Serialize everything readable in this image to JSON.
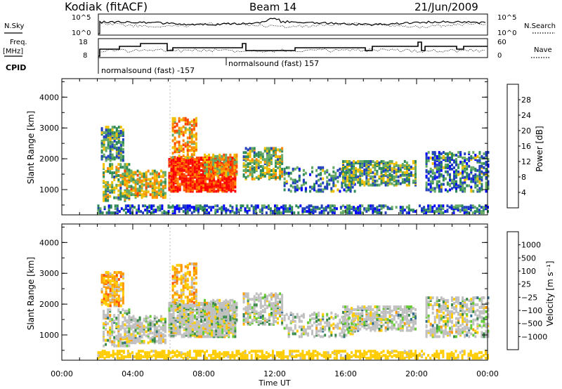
{
  "header": {
    "station": "Kodiak (fitACF)",
    "beam": "Beam 14",
    "date": "21/Jun/2009"
  },
  "panels": {
    "nsky_label": "N.Sky",
    "nsky_ticks": [
      "10^5",
      "10^0"
    ],
    "nsearch_label": "N.Search",
    "nsearch_ticks": [
      "10^5",
      "10^0"
    ],
    "freq_label": "Freq.",
    "freq_unit": "[MHz]",
    "freq_ticks": [
      "18",
      "8"
    ],
    "nave_label": "Nave",
    "nave_ticks": [
      "60",
      "0"
    ],
    "cpid_label": "CPID",
    "cpid_1": "normalsound (fast) -157",
    "cpid_2": "normalsound (fast) 157"
  },
  "chart_data": [
    {
      "type": "heatmap",
      "name": "Power",
      "ylabel": "Slant Range [km]",
      "xlabel": "Time UT",
      "x_ticks": [
        "00:00",
        "04:00",
        "08:00",
        "12:00",
        "16:00",
        "20:00",
        "00:00"
      ],
      "y_ticks": [
        "1000",
        "2000",
        "3000",
        "4000"
      ],
      "ylim": [
        180,
        4600
      ],
      "colorbar_label": "Power [dB]",
      "colorbar_ticks": [
        "28",
        "24",
        "20",
        "16",
        "12",
        "8",
        "4"
      ],
      "colors": [
        "#0000ff",
        "#2040c0",
        "#2e8b57",
        "#66aa66",
        "#f0c000",
        "#ff8800",
        "#ff4400",
        "#ff0000"
      ]
    },
    {
      "type": "heatmap",
      "name": "Velocity",
      "ylabel": "Slant Range [km]",
      "xlabel": "Time UT",
      "x_ticks": [
        "00:00",
        "04:00",
        "08:00",
        "12:00",
        "16:00",
        "20:00",
        "00:00"
      ],
      "y_ticks": [
        "1000",
        "2000",
        "3000",
        "4000"
      ],
      "ylim": [
        180,
        4600
      ],
      "colorbar_label": "Velocity [m s⁻¹]",
      "colorbar_ticks": [
        "1000",
        "500",
        "100",
        "25",
        "−25",
        "−100",
        "−500",
        "−1000"
      ],
      "colors": [
        "#1a3fb0",
        "#2e6b8f",
        "#3a8a4a",
        "#66cc33",
        "#c0c0c0",
        "#ffcc00",
        "#ff9900",
        "#ff5500",
        "#ff0000"
      ]
    }
  ]
}
